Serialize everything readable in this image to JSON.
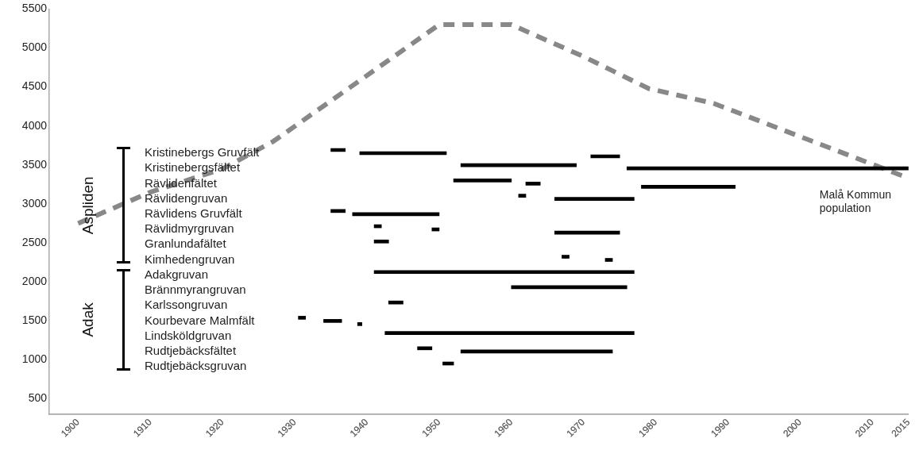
{
  "chart_data": [
    {
      "type": "line",
      "xlim": [
        1896,
        2015
      ],
      "xticks": [
        1900,
        1910,
        1920,
        1930,
        1940,
        1950,
        1960,
        1970,
        1980,
        1990,
        2000,
        2010,
        2015
      ],
      "ylim": [
        300,
        5500
      ],
      "yticks": [
        500,
        1000,
        1500,
        2000,
        2500,
        3000,
        3500,
        4000,
        4500,
        5000,
        5500
      ],
      "series": [
        {
          "name": "Malå Kommun population",
          "color": "#888888",
          "line_style": "dashed",
          "x": [
            1900,
            1910,
            1920,
            1927,
            1950,
            1960,
            1970,
            1979,
            1988,
            2015
          ],
          "values": [
            2750,
            3150,
            3450,
            3800,
            5300,
            5300,
            4890,
            4480,
            4290,
            3330
          ]
        }
      ],
      "tick_labels": "y",
      "grid": false,
      "legend": false
    },
    {
      "type": "bar",
      "orientation": "horizontal",
      "categories": [
        "Kristinebergs Gruvfält",
        "Kristinebergsfältet",
        "Rävlidenfältet",
        "Rävlidengruvan",
        "Rävlidens Gruvfält",
        "Rävlidmyrgruvan",
        "Granlundafältet",
        "Kimhedengruvan",
        "Adakgruvan",
        "Brännmyrangruvan",
        "Karlssongruvan",
        "Kourbevare Malmfält",
        "Lindsköldgruvan",
        "Rudtjebäcksfältet",
        "Rudtjebäcksgruvan"
      ],
      "xlim": [
        1896,
        2015
      ],
      "xticks": [
        1900,
        1910,
        1920,
        1930,
        1940,
        1950,
        1960,
        1970,
        1980,
        1990,
        2000,
        2010,
        2015
      ],
      "series": [
        {
          "color": "#000000",
          "base": [
            1935,
            1953,
            1952,
            1961,
            1935,
            1941,
            1941,
            1967,
            1941,
            1960,
            1943,
            1930.5,
            1942.5,
            1947,
            1950.5
          ],
          "values": [
            2,
            16,
            8,
            1,
            2,
            1,
            2,
            1,
            36,
            16,
            2,
            1,
            34.5,
            2,
            1.5
          ]
        },
        {
          "color": "#000000",
          "base": [
            1939,
            1976,
            1962,
            1966,
            1938,
            1949,
            null,
            1973,
            null,
            null,
            null,
            1934,
            null,
            1953,
            null
          ],
          "values": [
            12,
            39,
            2,
            11,
            12,
            1,
            null,
            1,
            null,
            null,
            null,
            2.5,
            null,
            21,
            null
          ]
        },
        {
          "color": "#000000",
          "base": [
            1971,
            null,
            1978,
            null,
            null,
            1966,
            null,
            null,
            null,
            null,
            null,
            1938.7,
            null,
            null,
            null
          ],
          "values": [
            4,
            null,
            13,
            null,
            null,
            9,
            null,
            null,
            null,
            null,
            null,
            0.6,
            null,
            null,
            null
          ]
        }
      ],
      "annotations": [
        "Aspliden",
        "Adak"
      ],
      "grid": false,
      "legend": false
    }
  ]
}
